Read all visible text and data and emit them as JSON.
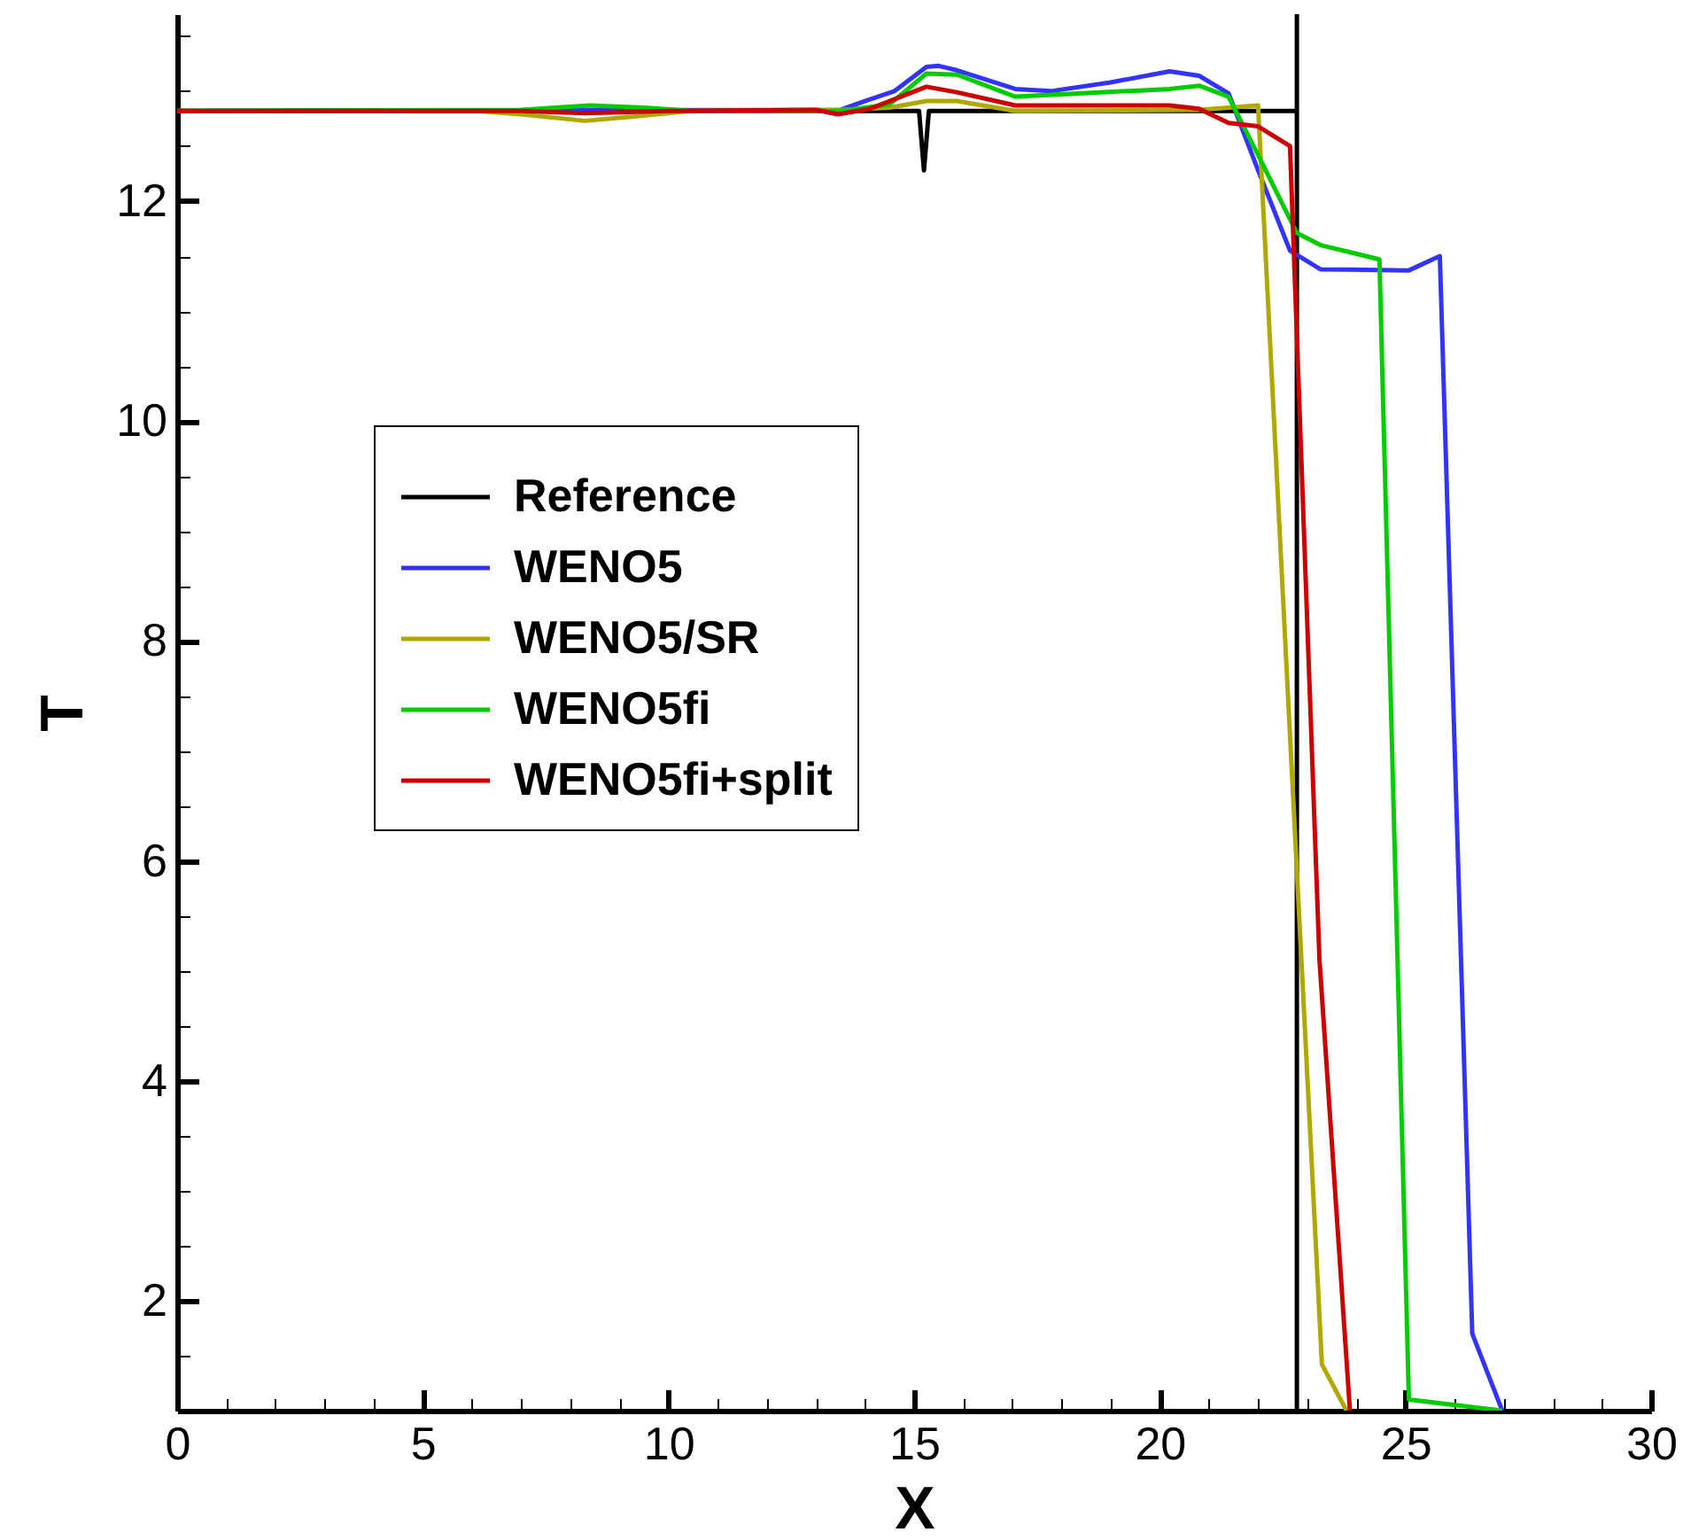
{
  "chart_data": {
    "type": "line",
    "xlabel": "X",
    "ylabel": "T",
    "xlim": [
      0,
      30
    ],
    "ylim": [
      1,
      13.7
    ],
    "xticks": [
      0,
      {
        "value": 1,
        "label": null
      },
      {
        "value": 2,
        "label": null
      },
      {
        "value": 3,
        "label": null
      },
      {
        "value": 4,
        "label": null
      },
      5,
      {
        "value": 6,
        "label": null
      },
      {
        "value": 7,
        "label": null
      },
      {
        "value": 8,
        "label": null
      },
      {
        "value": 9,
        "label": null
      },
      10,
      {
        "value": 11,
        "label": null
      },
      {
        "value": 12,
        "label": null
      },
      {
        "value": 13,
        "label": null
      },
      {
        "value": 14,
        "label": null
      },
      15,
      {
        "value": 16,
        "label": null
      },
      {
        "value": 17,
        "label": null
      },
      {
        "value": 18,
        "label": null
      },
      {
        "value": 19,
        "label": null
      },
      20,
      {
        "value": 21,
        "label": null
      },
      {
        "value": 22,
        "label": null
      },
      {
        "value": 23,
        "label": null
      },
      {
        "value": 24,
        "label": null
      },
      25,
      {
        "value": 26,
        "label": null
      },
      {
        "value": 27,
        "label": null
      },
      {
        "value": 28,
        "label": null
      },
      {
        "value": 29,
        "label": null
      },
      30
    ],
    "yticks": [
      {
        "value": 1.5,
        "label": null
      },
      2,
      {
        "value": 2.5,
        "label": null
      },
      {
        "value": 3,
        "label": null
      },
      {
        "value": 3.5,
        "label": null
      },
      4,
      {
        "value": 4.5,
        "label": null
      },
      {
        "value": 5,
        "label": null
      },
      {
        "value": 5.5,
        "label": null
      },
      6,
      {
        "value": 6.5,
        "label": null
      },
      {
        "value": 7,
        "label": null
      },
      {
        "value": 7.5,
        "label": null
      },
      8,
      {
        "value": 8.5,
        "label": null
      },
      {
        "value": 9,
        "label": null
      },
      {
        "value": 9.5,
        "label": null
      },
      10,
      {
        "value": 10.5,
        "label": null
      },
      {
        "value": 11,
        "label": null
      },
      {
        "value": 11.5,
        "label": null
      },
      12,
      {
        "value": 12.5,
        "label": null
      },
      {
        "value": 13,
        "label": null
      },
      {
        "value": 13.5,
        "label": null
      }
    ],
    "grid": false,
    "legend": "left",
    "marker": "none",
    "line_style": "solid",
    "series": [
      {
        "name": "Reference",
        "color": "#000000",
        "x": [
          0,
          15.1,
          15.2,
          15.3,
          22.79,
          22.79,
          22.79
        ],
        "values": [
          12.82,
          12.82,
          12.28,
          12.82,
          12.82,
          13.7,
          1.0
        ]
      },
      {
        "name": "WENO5",
        "color": "#3333ff",
        "x": [
          0,
          13.5,
          14.06,
          14.6,
          15.25,
          15.5,
          15.87,
          17.06,
          17.78,
          19,
          20.2,
          20.8,
          21.4,
          22.0,
          22.65,
          23.27,
          25.07,
          25.7,
          26.36,
          26.97
        ],
        "values": [
          12.82,
          12.83,
          12.92,
          13.0,
          13.22,
          13.23,
          13.19,
          13.02,
          13.0,
          13.08,
          13.18,
          13.14,
          12.98,
          12.28,
          11.55,
          11.38,
          11.37,
          11.5,
          1.7,
          1.0
        ]
      },
      {
        "name": "WENO5/SR",
        "color": "#b0a800",
        "x": [
          0,
          6.1,
          7,
          8.3,
          9.3,
          10.46,
          13.5,
          14.5,
          15.25,
          15.87,
          17.06,
          20.8,
          22.0,
          23.3,
          23.8
        ],
        "values": [
          12.82,
          12.82,
          12.79,
          12.73,
          12.77,
          12.82,
          12.83,
          12.85,
          12.91,
          12.91,
          12.82,
          12.83,
          12.87,
          1.42,
          1.0
        ]
      },
      {
        "name": "WENO5fi",
        "color": "#00cc00",
        "x": [
          0,
          7,
          8.4,
          9.5,
          10.46,
          13.5,
          14.5,
          15.25,
          15.87,
          17.06,
          20.2,
          20.8,
          21.4,
          22.0,
          22.79,
          23.27,
          24.47,
          25.07,
          26.97
        ],
        "values": [
          12.82,
          12.83,
          12.87,
          12.85,
          12.82,
          12.82,
          12.88,
          13.16,
          13.15,
          12.95,
          13.02,
          13.05,
          12.95,
          12.42,
          11.71,
          11.6,
          11.47,
          1.1,
          1.0
        ]
      },
      {
        "name": "WENO5fi+split",
        "color": "#cc0000",
        "x": [
          0,
          7,
          8.3,
          10,
          13,
          13.45,
          14.1,
          15.25,
          15.87,
          17.06,
          20.2,
          20.8,
          21.4,
          22.0,
          22.65,
          23.25,
          23.87
        ],
        "values": [
          12.82,
          12.82,
          12.8,
          12.82,
          12.83,
          12.79,
          12.84,
          13.04,
          12.99,
          12.87,
          12.87,
          12.84,
          12.71,
          12.68,
          12.5,
          5.1,
          1.0
        ]
      }
    ]
  }
}
